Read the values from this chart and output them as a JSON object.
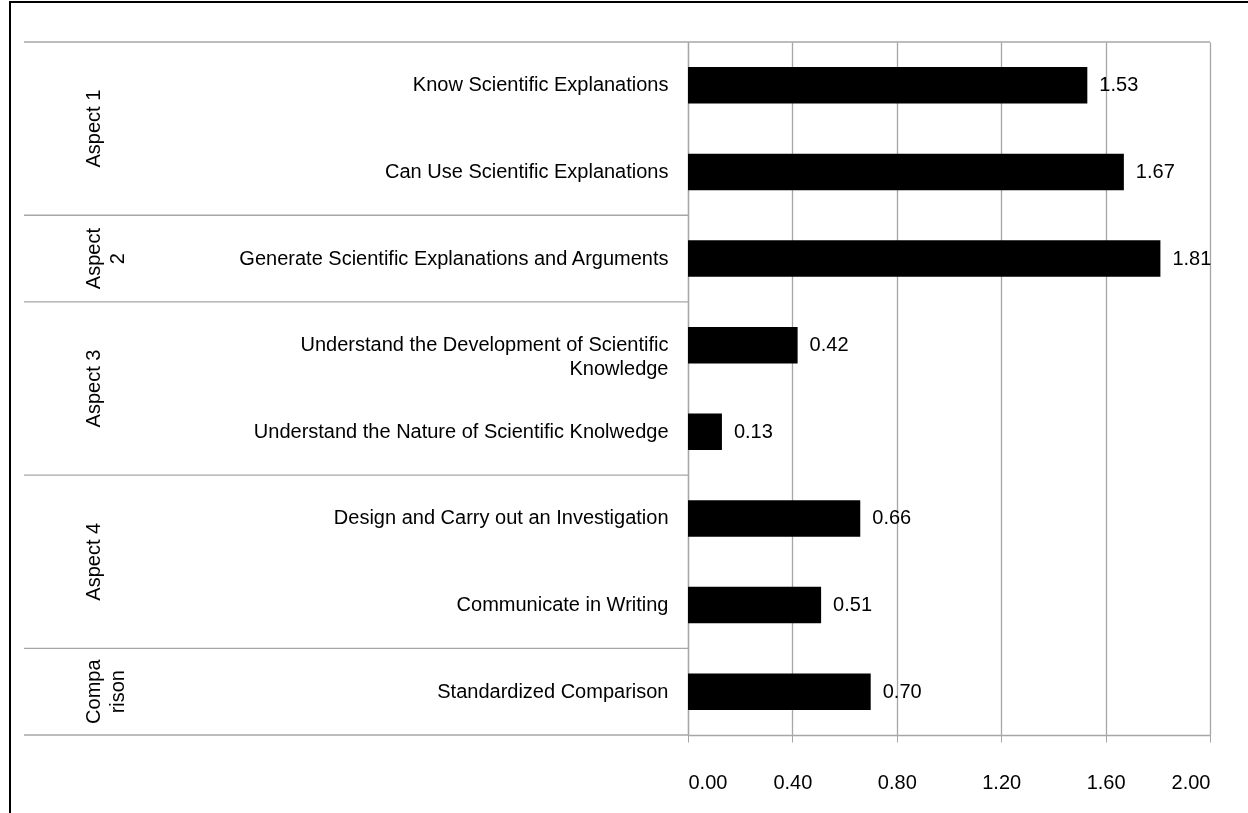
{
  "chart_data": {
    "type": "bar",
    "orientation": "horizontal",
    "categories": [
      "Know Scientific Explanations",
      "Can Use Scientific Explanations",
      "Generate Scientific Explanations and Arguments",
      "Understand the Development of Scientific Knowledge",
      "Understand the Nature of Scientific Knolwedge",
      "Design and Carry out an Investigation",
      "Communicate in Writing",
      "Standardized Comparison"
    ],
    "values": [
      1.53,
      1.67,
      1.81,
      0.42,
      0.13,
      0.66,
      0.51,
      0.7
    ],
    "value_labels": [
      "1.53",
      "1.67",
      "1.81",
      "0.42",
      "0.13",
      "0.66",
      "0.51",
      "0.70"
    ],
    "color": "#000000",
    "xlim": [
      0,
      2
    ],
    "xticks": [
      {
        "value": 0,
        "label": "0.00"
      },
      {
        "value": 0.4,
        "label": "0.40"
      },
      {
        "value": 0.8,
        "label": "0.80"
      },
      {
        "value": 1.2,
        "label": "1.20"
      },
      {
        "value": 1.6,
        "label": "1.60"
      },
      {
        "value": 2,
        "label": "2.00"
      }
    ],
    "grid": "x",
    "annotations": [
      "Aspect 1",
      "Aspect 2",
      "Aspect 3",
      "Aspect 4",
      "Comparison"
    ]
  }
}
